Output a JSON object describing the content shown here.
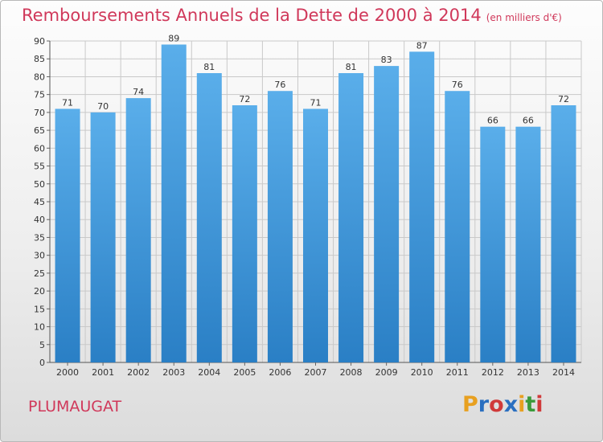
{
  "title": "Remboursements Annuels de la Dette de 2000 à 2014",
  "unit": "(en milliers d'€)",
  "commune": "PLUMAUGAT",
  "logo": {
    "letters": [
      "P",
      "r",
      "o",
      "x",
      "i",
      "t",
      "i"
    ],
    "colors": [
      "#e8a020",
      "#2a6fc0",
      "#d03a3a",
      "#2a6fc0",
      "#e8a020",
      "#3a9a3a",
      "#d03a3a"
    ]
  },
  "colors": {
    "bar_top": "#5aaeea",
    "bar_bottom": "#2a7fc5",
    "title": "#d0385a"
  },
  "chart_data": {
    "type": "bar",
    "categories": [
      "2000",
      "2001",
      "2002",
      "2003",
      "2004",
      "2005",
      "2006",
      "2007",
      "2008",
      "2009",
      "2010",
      "2011",
      "2012",
      "2013",
      "2014"
    ],
    "values": [
      71,
      70,
      74,
      89,
      81,
      72,
      76,
      71,
      81,
      83,
      87,
      76,
      66,
      66,
      72
    ],
    "ylim": [
      0,
      90
    ],
    "yticks": [
      0,
      5,
      10,
      15,
      20,
      25,
      30,
      35,
      40,
      45,
      50,
      55,
      60,
      65,
      70,
      75,
      80,
      85,
      90
    ],
    "grid": true
  }
}
